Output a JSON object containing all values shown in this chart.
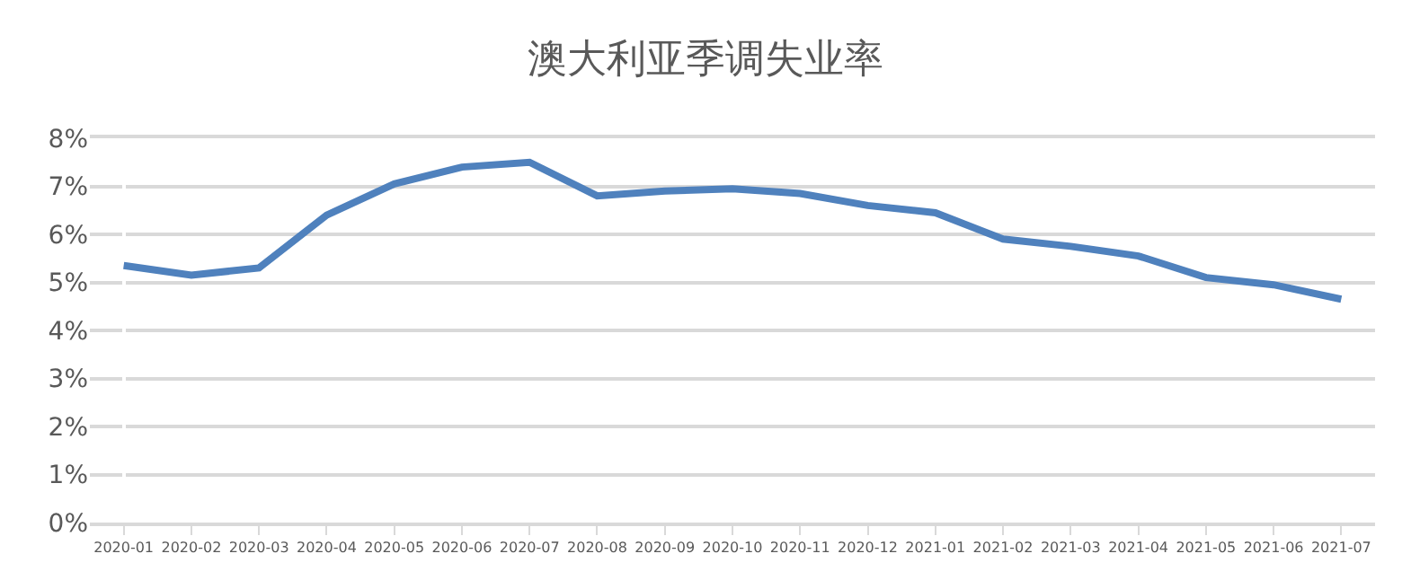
{
  "chart_data": {
    "type": "line",
    "title": "澳大利亚季调失业率",
    "categories": [
      "2020-01",
      "2020-02",
      "2020-03",
      "2020-04",
      "2020-05",
      "2020-06",
      "2020-07",
      "2020-08",
      "2020-09",
      "2020-10",
      "2020-11",
      "2020-12",
      "2021-01",
      "2021-02",
      "2021-03",
      "2021-04",
      "2021-05",
      "2021-06",
      "2021-07"
    ],
    "series": [
      {
        "color": "#4f81bd",
        "values": [
          5.35,
          5.15,
          5.3,
          6.4,
          7.05,
          7.4,
          7.5,
          6.8,
          6.9,
          6.95,
          6.85,
          6.6,
          6.45,
          5.9,
          5.75,
          5.55,
          5.1,
          4.95,
          4.65
        ]
      }
    ],
    "ylim": [
      0,
      8
    ],
    "yticks": [
      {
        "value": 0,
        "label": "0%"
      },
      {
        "value": 1,
        "label": "1%"
      },
      {
        "value": 2,
        "label": "2%"
      },
      {
        "value": 3,
        "label": "3%"
      },
      {
        "value": 4,
        "label": "4%"
      },
      {
        "value": 5,
        "label": "5%"
      },
      {
        "value": 6,
        "label": "6%"
      },
      {
        "value": 7,
        "label": "7%"
      },
      {
        "value": 8,
        "label": "8%"
      }
    ],
    "grid": "y",
    "marker": "none",
    "line_style": "solid"
  }
}
